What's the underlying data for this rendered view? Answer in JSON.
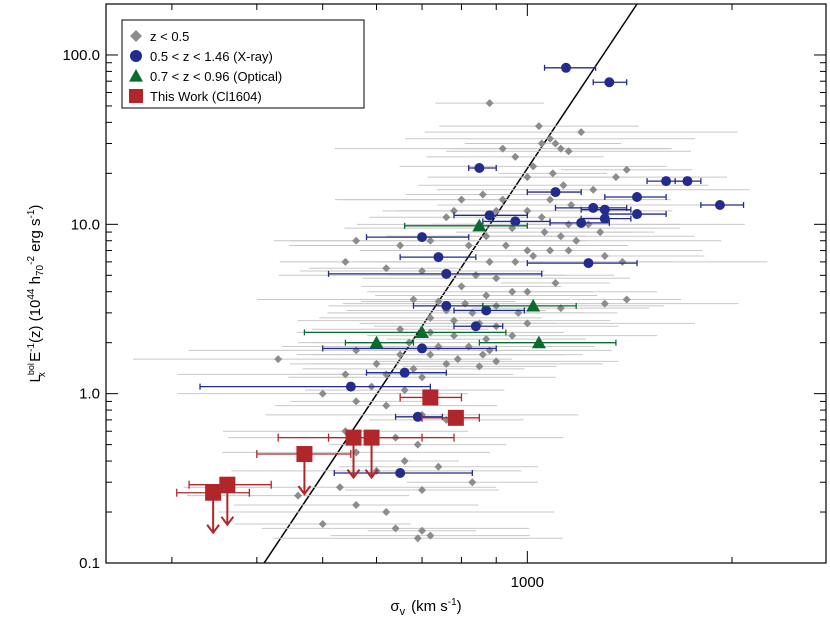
{
  "chart_data": {
    "type": "scatter",
    "title": "",
    "xlabel": "σ",
    "xlabel_sub": "v",
    "xlabel_units": "(km s",
    "xlabel_units_exp": "-1",
    "xlabel_units_close": ")",
    "ylabel_parts": {
      "main": "L",
      "sub": "x",
      "sup": "bol",
      "rest1": " E",
      "rest1_sup": "-1",
      "rest2": "(z)  (10",
      "rest2_sup": "44",
      "rest3": " h",
      "rest3_sub": "70",
      "rest3_sup": "-2",
      "rest4": " erg s",
      "rest4_sup": "-1",
      "rest5": ")"
    },
    "x_scale": "log",
    "y_scale": "log",
    "xlim": [
      240,
      2750
    ],
    "ylim": [
      0.1,
      200
    ],
    "x_ticks": [
      {
        "value": 1000,
        "label": "1000"
      }
    ],
    "x_minor_ticks": [
      300,
      400,
      500,
      600,
      700,
      800,
      900,
      2000
    ],
    "y_ticks": [
      {
        "value": 0.1,
        "label": "0.1"
      },
      {
        "value": 1.0,
        "label": "1.0"
      },
      {
        "value": 10.0,
        "label": "10.0"
      },
      {
        "value": 100.0,
        "label": "100.0"
      }
    ],
    "y_minor_ticks": [
      0.2,
      0.3,
      0.4,
      0.5,
      0.6,
      0.7,
      0.8,
      0.9,
      2,
      3,
      4,
      5,
      6,
      7,
      8,
      9,
      20,
      30,
      40,
      50,
      60,
      70,
      80,
      90
    ],
    "grid": false,
    "legend_position": "top-left",
    "fit_line": {
      "x": [
        410,
        1450
      ],
      "y": [
        0.1,
        200
      ]
    },
    "colors": {
      "lowz": "#8c8c8c",
      "lowz_err": "#c8c8c8",
      "xray": "#232c8c",
      "optical": "#0b6b2e",
      "this_work": "#b0262a",
      "fit": "#000000"
    },
    "series": [
      {
        "name": "z < 0.5",
        "marker": "diamond",
        "points": [
          {
            "x": 880,
            "y": 52
          },
          {
            "x": 1040,
            "y": 38
          },
          {
            "x": 1080,
            "y": 32
          },
          {
            "x": 1100,
            "y": 30
          },
          {
            "x": 1120,
            "y": 28
          },
          {
            "x": 1200,
            "y": 35
          },
          {
            "x": 1050,
            "y": 30
          },
          {
            "x": 1150,
            "y": 27
          },
          {
            "x": 920,
            "y": 28
          },
          {
            "x": 960,
            "y": 25
          },
          {
            "x": 1020,
            "y": 22
          },
          {
            "x": 1090,
            "y": 20
          },
          {
            "x": 1000,
            "y": 19
          },
          {
            "x": 1130,
            "y": 17
          },
          {
            "x": 1400,
            "y": 21
          },
          {
            "x": 1350,
            "y": 19
          },
          {
            "x": 1250,
            "y": 16
          },
          {
            "x": 860,
            "y": 15
          },
          {
            "x": 800,
            "y": 14
          },
          {
            "x": 920,
            "y": 14
          },
          {
            "x": 1080,
            "y": 14
          },
          {
            "x": 1160,
            "y": 13
          },
          {
            "x": 780,
            "y": 12
          },
          {
            "x": 900,
            "y": 12
          },
          {
            "x": 1000,
            "y": 12
          },
          {
            "x": 1050,
            "y": 11
          },
          {
            "x": 1150,
            "y": 10
          },
          {
            "x": 1230,
            "y": 10
          },
          {
            "x": 760,
            "y": 11
          },
          {
            "x": 850,
            "y": 10
          },
          {
            "x": 950,
            "y": 9.5
          },
          {
            "x": 1060,
            "y": 9
          },
          {
            "x": 1120,
            "y": 8.5
          },
          {
            "x": 1280,
            "y": 9
          },
          {
            "x": 870,
            "y": 8.5
          },
          {
            "x": 1180,
            "y": 8
          },
          {
            "x": 560,
            "y": 8
          },
          {
            "x": 650,
            "y": 7.5
          },
          {
            "x": 720,
            "y": 8
          },
          {
            "x": 820,
            "y": 7.5
          },
          {
            "x": 930,
            "y": 7.5
          },
          {
            "x": 1000,
            "y": 7
          },
          {
            "x": 1080,
            "y": 7
          },
          {
            "x": 1150,
            "y": 7
          },
          {
            "x": 1020,
            "y": 6.5
          },
          {
            "x": 1300,
            "y": 6.5
          },
          {
            "x": 1380,
            "y": 6
          },
          {
            "x": 540,
            "y": 6
          },
          {
            "x": 880,
            "y": 6
          },
          {
            "x": 960,
            "y": 6
          },
          {
            "x": 620,
            "y": 5.5
          },
          {
            "x": 700,
            "y": 5.3
          },
          {
            "x": 760,
            "y": 5
          },
          {
            "x": 840,
            "y": 5
          },
          {
            "x": 900,
            "y": 4.8
          },
          {
            "x": 1100,
            "y": 4.5
          },
          {
            "x": 800,
            "y": 4.3
          },
          {
            "x": 950,
            "y": 4
          },
          {
            "x": 1000,
            "y": 4
          },
          {
            "x": 870,
            "y": 3.8
          },
          {
            "x": 680,
            "y": 3.6
          },
          {
            "x": 740,
            "y": 3.5
          },
          {
            "x": 810,
            "y": 3.4
          },
          {
            "x": 900,
            "y": 3.3
          },
          {
            "x": 1120,
            "y": 3.2
          },
          {
            "x": 1300,
            "y": 3.4
          },
          {
            "x": 1400,
            "y": 3.6
          },
          {
            "x": 760,
            "y": 3.1
          },
          {
            "x": 830,
            "y": 3.0
          },
          {
            "x": 970,
            "y": 3.0
          },
          {
            "x": 720,
            "y": 2.8
          },
          {
            "x": 780,
            "y": 2.7
          },
          {
            "x": 850,
            "y": 2.6
          },
          {
            "x": 900,
            "y": 2.5
          },
          {
            "x": 1000,
            "y": 2.6
          },
          {
            "x": 650,
            "y": 2.4
          },
          {
            "x": 720,
            "y": 2.3
          },
          {
            "x": 780,
            "y": 2.2
          },
          {
            "x": 870,
            "y": 2.1
          },
          {
            "x": 950,
            "y": 2.2
          },
          {
            "x": 600,
            "y": 2.0
          },
          {
            "x": 670,
            "y": 2.0
          },
          {
            "x": 740,
            "y": 1.9
          },
          {
            "x": 820,
            "y": 1.9
          },
          {
            "x": 880,
            "y": 1.8
          },
          {
            "x": 560,
            "y": 1.8
          },
          {
            "x": 650,
            "y": 1.7
          },
          {
            "x": 720,
            "y": 1.7
          },
          {
            "x": 790,
            "y": 1.6
          },
          {
            "x": 860,
            "y": 1.7
          },
          {
            "x": 430,
            "y": 1.6
          },
          {
            "x": 600,
            "y": 1.5
          },
          {
            "x": 680,
            "y": 1.4
          },
          {
            "x": 760,
            "y": 1.5
          },
          {
            "x": 850,
            "y": 1.45
          },
          {
            "x": 900,
            "y": 1.55
          },
          {
            "x": 540,
            "y": 1.3
          },
          {
            "x": 620,
            "y": 1.3
          },
          {
            "x": 700,
            "y": 1.25
          },
          {
            "x": 590,
            "y": 1.1
          },
          {
            "x": 660,
            "y": 1.05
          },
          {
            "x": 500,
            "y": 1.0
          },
          {
            "x": 560,
            "y": 0.9
          },
          {
            "x": 620,
            "y": 0.85
          },
          {
            "x": 700,
            "y": 0.75
          },
          {
            "x": 760,
            "y": 0.7
          },
          {
            "x": 540,
            "y": 0.6
          },
          {
            "x": 640,
            "y": 0.55
          },
          {
            "x": 690,
            "y": 0.5
          },
          {
            "x": 560,
            "y": 0.45
          },
          {
            "x": 660,
            "y": 0.4
          },
          {
            "x": 740,
            "y": 0.37
          },
          {
            "x": 600,
            "y": 0.35
          },
          {
            "x": 830,
            "y": 0.3
          },
          {
            "x": 460,
            "y": 0.25
          },
          {
            "x": 530,
            "y": 0.28
          },
          {
            "x": 700,
            "y": 0.27
          },
          {
            "x": 560,
            "y": 0.22
          },
          {
            "x": 620,
            "y": 0.2
          },
          {
            "x": 500,
            "y": 0.17
          },
          {
            "x": 640,
            "y": 0.16
          },
          {
            "x": 700,
            "y": 0.155
          },
          {
            "x": 720,
            "y": 0.145
          },
          {
            "x": 690,
            "y": 0.14
          }
        ]
      },
      {
        "name": "0.5 < z < 1.46 (X-ray)",
        "marker": "circle",
        "points": [
          {
            "x": 1140,
            "y": 84,
            "xerr": [
              1060,
              1260
            ]
          },
          {
            "x": 1320,
            "y": 69,
            "xerr": [
              1250,
              1400
            ]
          },
          {
            "x": 850,
            "y": 21.5,
            "xerr": [
              820,
              900
            ]
          },
          {
            "x": 1600,
            "y": 18,
            "xerr": [
              1500,
              1700
            ]
          },
          {
            "x": 1720,
            "y": 18,
            "xerr": [
              1650,
              1800
            ]
          },
          {
            "x": 1100,
            "y": 15.5,
            "xerr": [
              1000,
              1200
            ]
          },
          {
            "x": 1450,
            "y": 14.5,
            "xerr": [
              1300,
              1600
            ]
          },
          {
            "x": 1920,
            "y": 13,
            "xerr": [
              1800,
              2080
            ]
          },
          {
            "x": 1250,
            "y": 12.5,
            "xerr": [
              1100,
              1400
            ]
          },
          {
            "x": 1300,
            "y": 12.2,
            "xerr": [
              1200,
              1420
            ]
          },
          {
            "x": 1450,
            "y": 11.5,
            "xerr": [
              1300,
              1600
            ]
          },
          {
            "x": 880,
            "y": 11.3,
            "xerr": [
              780,
              1000
            ]
          },
          {
            "x": 1300,
            "y": 10.8,
            "xerr": [
              1200,
              1420
            ]
          },
          {
            "x": 960,
            "y": 10.4,
            "xerr": [
              860,
              1080
            ]
          },
          {
            "x": 1200,
            "y": 10.2,
            "xerr": [
              1080,
              1320
            ]
          },
          {
            "x": 700,
            "y": 8.4,
            "xerr": [
              580,
              820
            ]
          },
          {
            "x": 740,
            "y": 6.4,
            "xerr": [
              650,
              840
            ]
          },
          {
            "x": 1230,
            "y": 5.9,
            "xerr": [
              1000,
              1450
            ]
          },
          {
            "x": 760,
            "y": 5.1,
            "xerr": [
              510,
              1050
            ]
          },
          {
            "x": 760,
            "y": 3.3,
            "xerr": [
              680,
              860
            ]
          },
          {
            "x": 870,
            "y": 3.1,
            "xerr": [
              780,
              990
            ]
          },
          {
            "x": 840,
            "y": 2.5,
            "xerr": [
              780,
              920
            ]
          },
          {
            "x": 700,
            "y": 1.85,
            "xerr": [
              500,
              900
            ]
          },
          {
            "x": 660,
            "y": 1.33,
            "xerr": [
              580,
              760
            ]
          },
          {
            "x": 550,
            "y": 1.1,
            "xerr": [
              330,
              720
            ]
          },
          {
            "x": 690,
            "y": 0.73,
            "xerr": [
              640,
              750
            ]
          },
          {
            "x": 650,
            "y": 0.34,
            "xerr": [
              520,
              830
            ]
          }
        ]
      },
      {
        "name": "0.7 < z < 0.96 (Optical)",
        "marker": "triangle",
        "points": [
          {
            "x": 850,
            "y": 9.8,
            "xerr": [
              660,
              1000
            ]
          },
          {
            "x": 1020,
            "y": 3.3,
            "xerr": [
              860,
              1180
            ]
          },
          {
            "x": 700,
            "y": 2.3,
            "xerr": [
              470,
              930
            ]
          },
          {
            "x": 600,
            "y": 2.0,
            "xerr": [
              540,
              680
            ]
          },
          {
            "x": 1040,
            "y": 2.0,
            "xerr": [
              850,
              1350
            ]
          }
        ]
      },
      {
        "name": "This Work (Cl1604)",
        "marker": "square",
        "points": [
          {
            "x": 345,
            "y": 0.26,
            "xerr": [
              305,
              390
            ],
            "upper_limit": true
          },
          {
            "x": 362,
            "y": 0.29,
            "xerr": [
              318,
              420
            ],
            "upper_limit": true
          },
          {
            "x": 470,
            "y": 0.44,
            "xerr": [
              400,
              550
            ],
            "upper_limit": true
          },
          {
            "x": 555,
            "y": 0.55,
            "xerr": [
              430,
              700
            ],
            "upper_limit": true
          },
          {
            "x": 590,
            "y": 0.55,
            "xerr": [
              510,
              780
            ],
            "upper_limit": true
          },
          {
            "x": 720,
            "y": 0.95,
            "xerr": [
              650,
              800
            ]
          },
          {
            "x": 785,
            "y": 0.72,
            "xerr": [
              700,
              850
            ]
          }
        ]
      }
    ]
  }
}
